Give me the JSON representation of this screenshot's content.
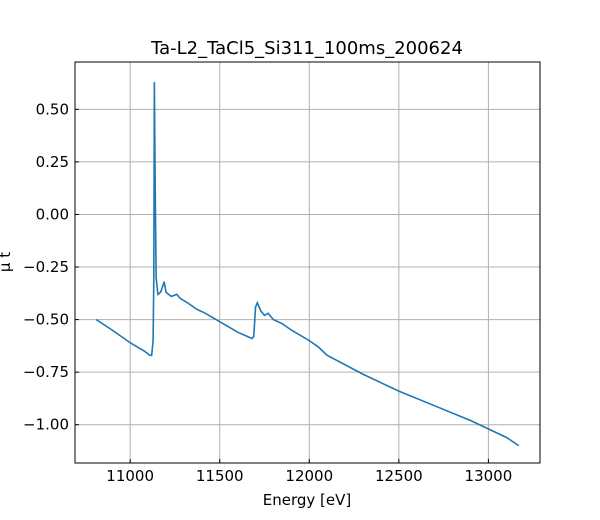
{
  "chart_data": {
    "type": "line",
    "title": "Ta-L2_TaCl5_Si311_100ms_200624",
    "x_label": "Energy [eV]",
    "y_label": "μ t",
    "x": [
      10810,
      10900,
      11000,
      11080,
      11110,
      11120,
      11128,
      11132,
      11135,
      11140,
      11145,
      11155,
      11170,
      11190,
      11200,
      11230,
      11260,
      11280,
      11320,
      11370,
      11420,
      11500,
      11600,
      11680,
      11690,
      11700,
      11710,
      11730,
      11750,
      11770,
      11800,
      11850,
      11900,
      12000,
      12050,
      12100,
      12300,
      12500,
      12700,
      12900,
      13100,
      13170
    ],
    "series": [
      {
        "color": "#1f77b4",
        "values": [
          -0.5,
          -0.55,
          -0.61,
          -0.65,
          -0.67,
          -0.67,
          -0.6,
          -0.3,
          0.63,
          0.1,
          -0.3,
          -0.38,
          -0.37,
          -0.32,
          -0.37,
          -0.39,
          -0.38,
          -0.4,
          -0.42,
          -0.45,
          -0.47,
          -0.51,
          -0.56,
          -0.59,
          -0.58,
          -0.44,
          -0.42,
          -0.46,
          -0.48,
          -0.47,
          -0.5,
          -0.52,
          -0.55,
          -0.6,
          -0.63,
          -0.67,
          -0.76,
          -0.84,
          -0.91,
          -0.98,
          -1.06,
          -1.1
        ]
      }
    ],
    "xlim": [
      10692,
      13288
    ],
    "ylim": [
      -1.182,
      0.725
    ],
    "xticks": [
      11000,
      11500,
      12000,
      12500,
      13000
    ],
    "yticks": [
      {
        "value": 0.5,
        "label": "0.50"
      },
      {
        "value": 0.25,
        "label": "0.25"
      },
      {
        "value": 0,
        "label": "0.00"
      },
      {
        "value": -0.25,
        "label": "−0.25"
      },
      {
        "value": -0.5,
        "label": "−0.50"
      },
      {
        "value": -0.75,
        "label": "−0.75"
      },
      {
        "value": -1,
        "label": "−1.00"
      }
    ],
    "grid": true
  }
}
